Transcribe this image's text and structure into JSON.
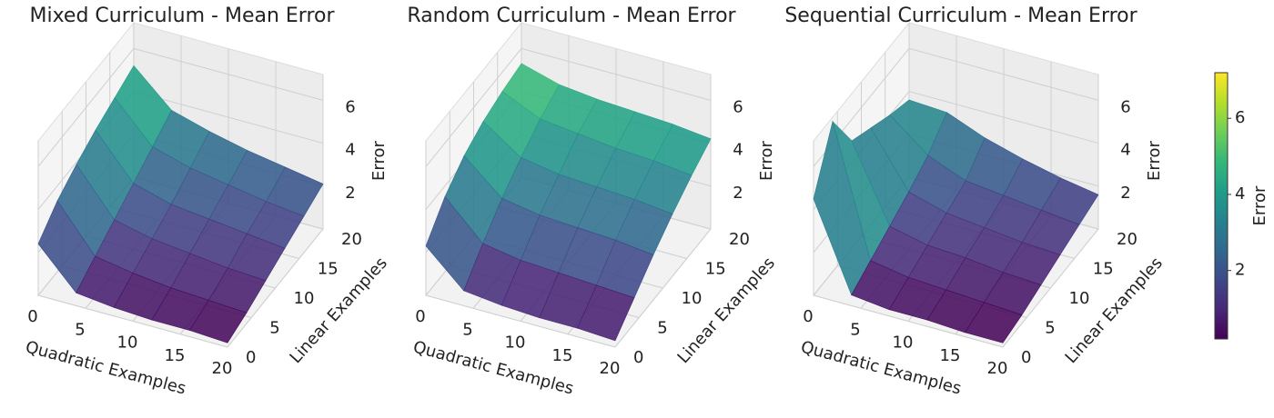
{
  "chart_data": [
    {
      "type": "surface3d",
      "title": "Mixed Curriculum - Mean Error",
      "xlabel": "Quadratic Examples",
      "ylabel": "Linear Examples",
      "zlabel": "Error",
      "x": [
        0,
        4,
        8,
        12,
        16,
        20
      ],
      "y": [
        0,
        4,
        8,
        12,
        16,
        20
      ],
      "z": [
        [
          2.4,
          3.3,
          3.9,
          4.4,
          4.8,
          5.2
        ],
        [
          0.6,
          1.2,
          1.8,
          2.4,
          3.0,
          3.6
        ],
        [
          0.4,
          0.9,
          1.4,
          1.9,
          2.5,
          3.1
        ],
        [
          0.3,
          0.7,
          1.2,
          1.7,
          2.2,
          2.7
        ],
        [
          0.3,
          0.6,
          1.0,
          1.5,
          1.9,
          2.4
        ],
        [
          0.2,
          0.5,
          0.9,
          1.3,
          1.7,
          2.1
        ]
      ],
      "xlim": [
        0,
        20
      ],
      "ylim": [
        0,
        20
      ],
      "zlim": [
        0,
        7.2
      ],
      "xticks": [
        0,
        5,
        10,
        15,
        20
      ],
      "yticks": [
        0,
        5,
        10,
        15,
        20
      ],
      "zticks": [
        2,
        4,
        6
      ],
      "colormap": "viridis",
      "grid": true
    },
    {
      "type": "surface3d",
      "title": "Random Curriculum - Mean Error",
      "xlabel": "Quadratic Examples",
      "ylabel": "Linear Examples",
      "zlabel": "Error",
      "x": [
        0,
        4,
        8,
        12,
        16,
        20
      ],
      "y": [
        0,
        4,
        8,
        12,
        16,
        20
      ],
      "z": [
        [
          2.3,
          3.5,
          4.3,
          4.8,
          5.1,
          5.3
        ],
        [
          0.7,
          1.8,
          2.8,
          3.6,
          4.3,
          4.8
        ],
        [
          0.5,
          1.5,
          2.5,
          3.3,
          4.1,
          4.6
        ],
        [
          0.4,
          1.4,
          2.4,
          3.2,
          3.9,
          4.5
        ],
        [
          0.4,
          1.3,
          2.3,
          3.1,
          3.8,
          4.4
        ],
        [
          0.3,
          1.2,
          2.1,
          2.9,
          3.6,
          4.2
        ]
      ],
      "xlim": [
        0,
        20
      ],
      "ylim": [
        0,
        20
      ],
      "zlim": [
        0,
        7.2
      ],
      "xticks": [
        0,
        5,
        10,
        15,
        20
      ],
      "yticks": [
        0,
        5,
        10,
        15,
        20
      ],
      "zticks": [
        2,
        4,
        6
      ],
      "colormap": "viridis",
      "grid": true
    },
    {
      "type": "surface3d",
      "title": "Sequential Curriculum - Mean Error",
      "xlabel": "Quadratic Examples",
      "ylabel": "Linear Examples",
      "zlabel": "Error",
      "x": [
        0,
        4,
        8,
        12,
        16,
        20
      ],
      "y": [
        0,
        4,
        8,
        12,
        16,
        20
      ],
      "z": [
        [
          4.5,
          7.0,
          5.0,
          4.5,
          4.0,
          3.6
        ],
        [
          0.5,
          1.0,
          1.5,
          2.0,
          2.6,
          3.5
        ],
        [
          0.3,
          0.7,
          1.1,
          1.5,
          1.9,
          2.8
        ],
        [
          0.3,
          0.6,
          1.0,
          1.3,
          1.7,
          2.3
        ],
        [
          0.2,
          0.5,
          0.8,
          1.1,
          1.5,
          1.9
        ],
        [
          0.2,
          0.4,
          0.7,
          1.0,
          1.3,
          1.6
        ]
      ],
      "xlim": [
        0,
        20
      ],
      "ylim": [
        0,
        20
      ],
      "zlim": [
        0,
        7.2
      ],
      "xticks": [
        0,
        5,
        10,
        15,
        20
      ],
      "yticks": [
        0,
        5,
        10,
        15,
        20
      ],
      "zticks": [
        2,
        4,
        6
      ],
      "colormap": "viridis",
      "grid": true
    }
  ],
  "colorbar": {
    "label": "Error",
    "lim": [
      0.2,
      7.2
    ],
    "ticks": [
      2,
      4,
      6
    ],
    "colormap": "viridis"
  }
}
